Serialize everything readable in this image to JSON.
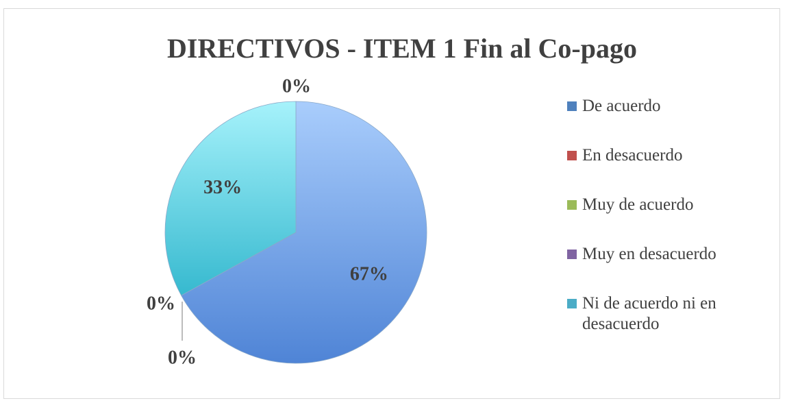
{
  "chart_data": {
    "type": "pie",
    "title": "DIRECTIVOS - ITEM 1 Fin al Co-pago",
    "categories": [
      "De acuerdo",
      "En desacuerdo",
      "Muy de acuerdo",
      "Muy en desacuerdo",
      "Ni de acuerdo ni en desacuerdo"
    ],
    "values": [
      67,
      0,
      0,
      0,
      33
    ],
    "value_labels": [
      "67%",
      "0%",
      "0%",
      "0%",
      "33%"
    ],
    "colors": [
      "#4f81bd",
      "#c0504d",
      "#9bbb59",
      "#8064a2",
      "#4bacc6"
    ],
    "legend": "right"
  }
}
